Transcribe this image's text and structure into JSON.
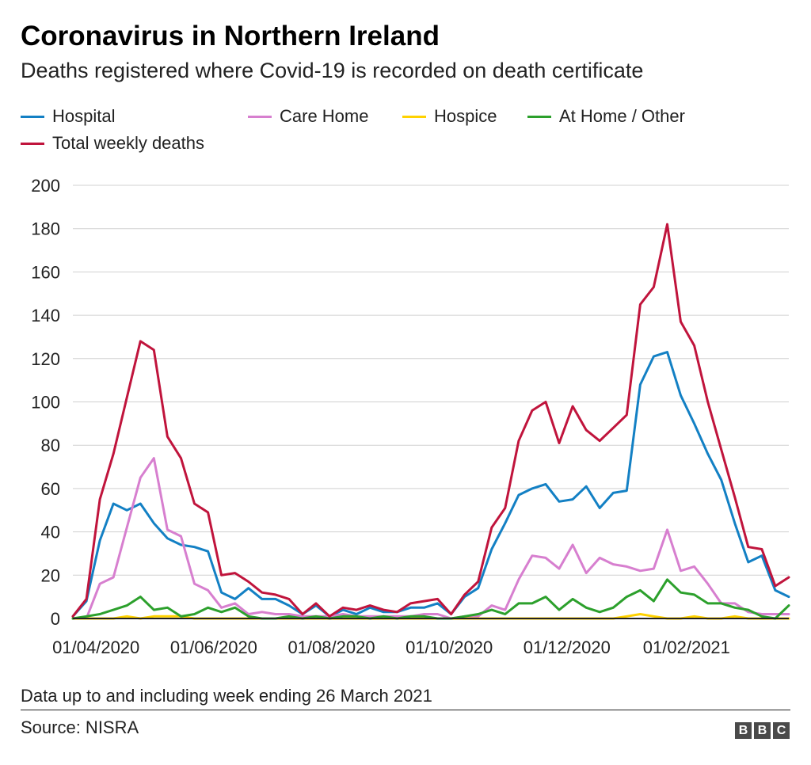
{
  "header": {
    "title": "Coronavirus in Northern Ireland",
    "subtitle": "Deaths registered where Covid-19 is recorded on death certificate"
  },
  "footer": {
    "note": "Data up to and including week ending 26 March 2021",
    "source": "Source: NISRA",
    "logo_letters": [
      "B",
      "B",
      "C"
    ]
  },
  "chart_data": {
    "type": "line",
    "title": "Coronavirus in Northern Ireland",
    "subtitle": "Deaths registered where Covid-19 is recorded on death certificate",
    "x_start_week_ending": "2020-03-20",
    "x_interval_days": 7,
    "x_ticks": [
      "01/04/2020",
      "01/06/2020",
      "01/08/2020",
      "01/10/2020",
      "01/12/2020",
      "01/02/2021"
    ],
    "y_ticks": [
      "0",
      "20",
      "40",
      "60",
      "80",
      "100",
      "120",
      "140",
      "160",
      "180",
      "200"
    ],
    "ylim": [
      0,
      200
    ],
    "grid": true,
    "legend_position": "top",
    "series": [
      {
        "name": "Hospital",
        "color": "#1380c4",
        "values": [
          1,
          8,
          36,
          53,
          50,
          53,
          44,
          37,
          34,
          33,
          31,
          12,
          9,
          14,
          9,
          9,
          6,
          2,
          6,
          1,
          4,
          2,
          5,
          3,
          3,
          5,
          5,
          7,
          2,
          10,
          14,
          32,
          44,
          57,
          60,
          62,
          54,
          55,
          61,
          51,
          58,
          59,
          108,
          121,
          123,
          103,
          90,
          76,
          64,
          44,
          26,
          29,
          13,
          10
        ]
      },
      {
        "name": "Care Home",
        "color": "#d77fcf",
        "values": [
          0,
          0,
          16,
          19,
          42,
          65,
          74,
          41,
          38,
          16,
          13,
          5,
          7,
          2,
          3,
          2,
          2,
          1,
          1,
          1,
          2,
          1,
          1,
          1,
          1,
          1,
          2,
          2,
          0,
          1,
          1,
          6,
          4,
          18,
          29,
          28,
          23,
          34,
          21,
          28,
          25,
          24,
          22,
          23,
          41,
          22,
          24,
          16,
          7,
          7,
          3,
          2,
          2,
          2
        ]
      },
      {
        "name": "Hospice",
        "color": "#ffd200",
        "values": [
          0,
          0,
          0,
          0,
          1,
          0,
          1,
          1,
          1,
          0,
          0,
          0,
          0,
          0,
          0,
          0,
          0,
          0,
          0,
          0,
          0,
          0,
          0,
          0,
          0,
          0,
          0,
          0,
          0,
          0,
          0,
          0,
          0,
          0,
          0,
          0,
          0,
          0,
          0,
          0,
          0,
          1,
          2,
          1,
          0,
          0,
          1,
          0,
          0,
          1,
          0,
          0,
          0,
          0
        ]
      },
      {
        "name": "At Home / Other",
        "color": "#2ca02c",
        "values": [
          0,
          1,
          2,
          4,
          6,
          10,
          4,
          5,
          1,
          2,
          5,
          3,
          5,
          1,
          0,
          0,
          1,
          0,
          1,
          0,
          1,
          1,
          0,
          1,
          0,
          1,
          1,
          0,
          0,
          1,
          2,
          4,
          2,
          7,
          7,
          10,
          4,
          9,
          5,
          3,
          5,
          10,
          13,
          8,
          18,
          12,
          11,
          7,
          7,
          5,
          4,
          1,
          0,
          6
        ]
      },
      {
        "name": "Total weekly deaths",
        "color": "#c0143c",
        "values": [
          1,
          9,
          55,
          76,
          102,
          128,
          124,
          84,
          74,
          53,
          49,
          20,
          21,
          17,
          12,
          11,
          9,
          2,
          7,
          1,
          5,
          4,
          6,
          4,
          3,
          7,
          8,
          9,
          2,
          11,
          17,
          42,
          51,
          82,
          96,
          100,
          81,
          98,
          87,
          82,
          88,
          94,
          145,
          153,
          182,
          137,
          126,
          100,
          78,
          56,
          33,
          32,
          15,
          19
        ]
      }
    ]
  }
}
